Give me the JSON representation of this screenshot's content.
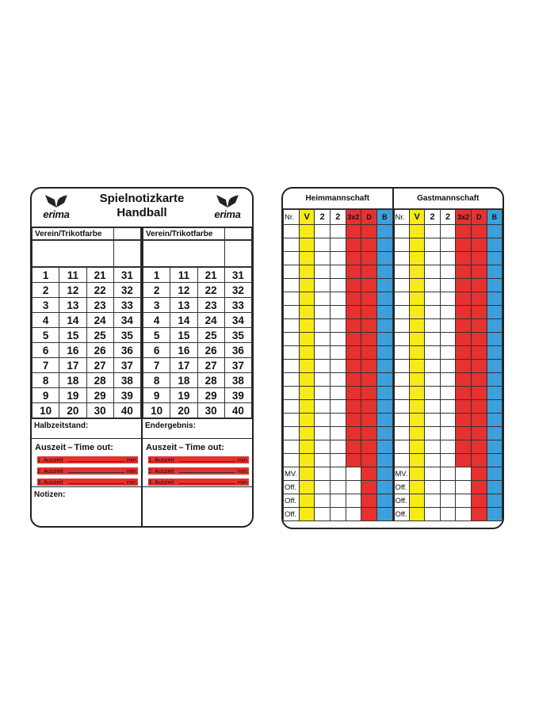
{
  "left_card": {
    "title_line1": "Spielnotizkarte",
    "title_line2": "Handball",
    "brand": "erima",
    "team_header": "Verein/Trikotfarbe",
    "numbers": [
      [
        1,
        11,
        21,
        31
      ],
      [
        2,
        12,
        22,
        32
      ],
      [
        3,
        13,
        23,
        33
      ],
      [
        4,
        14,
        24,
        34
      ],
      [
        5,
        15,
        25,
        35
      ],
      [
        6,
        16,
        26,
        36
      ],
      [
        7,
        17,
        27,
        37
      ],
      [
        8,
        18,
        28,
        38
      ],
      [
        9,
        19,
        29,
        39
      ],
      [
        10,
        20,
        30,
        40
      ]
    ],
    "halftime_label": "Halbzeitstand:",
    "final_label": "Endergebnis:",
    "timeout_title": "Auszeit – Time out:",
    "timeouts": [
      "1. Auszeit",
      "2. Auszeit",
      "3. Auszeit"
    ],
    "min_label": "min.",
    "notes_label": "Notizen:"
  },
  "right_card": {
    "teams": [
      "Heimmannschaft",
      "Gastmannschaft"
    ],
    "columns": [
      "Nr.",
      "V",
      "2",
      "2",
      "3x2",
      "D",
      "B"
    ],
    "row_count": 18,
    "official_rows": [
      "MV.",
      "Off.",
      "Off.",
      "Off."
    ],
    "colors": {
      "V": "#f7ea16",
      "red": "#e5312f",
      "B": "#3d9fdc"
    }
  }
}
